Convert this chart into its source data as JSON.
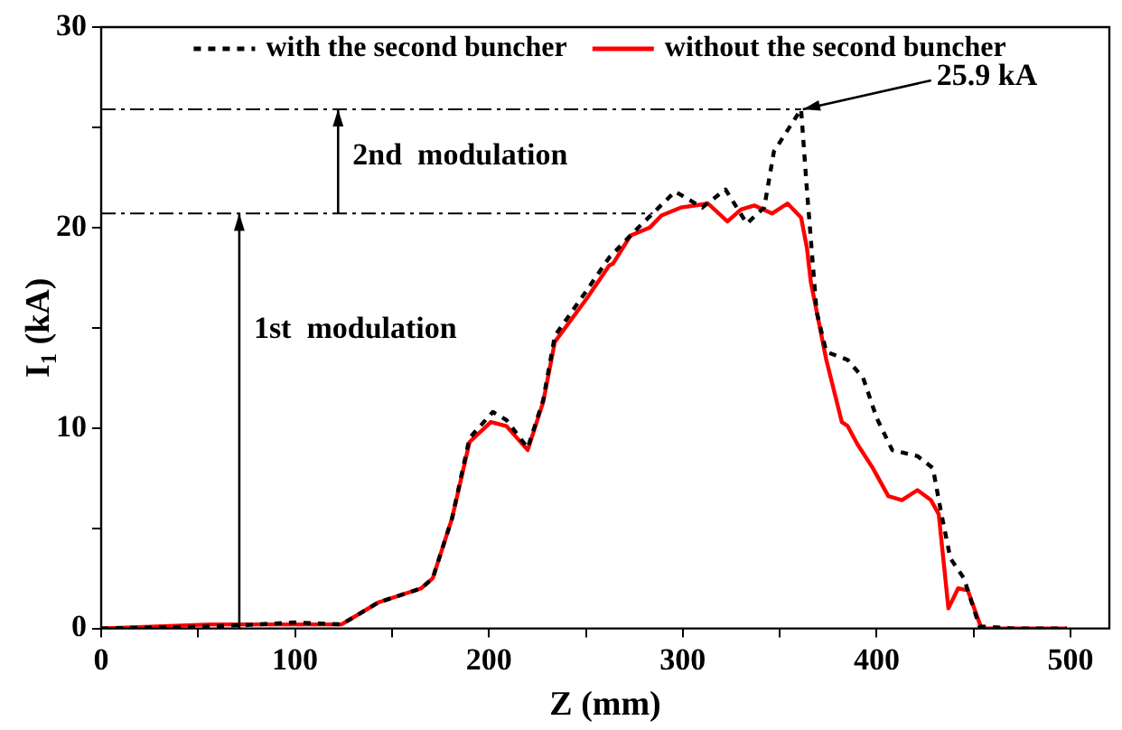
{
  "chart_data": {
    "type": "line",
    "xlabel": "Z (mm)",
    "ylabel": "I$_{1}$ (kA)",
    "xlim": [
      0,
      520
    ],
    "ylim": [
      0,
      30
    ],
    "xticks": [
      0,
      {
        "value": 50,
        "label": null
      },
      100,
      {
        "value": 150,
        "label": null
      },
      200,
      {
        "value": 250,
        "label": null
      },
      300,
      {
        "value": 350,
        "label": null
      },
      400,
      {
        "value": 450,
        "label": null
      },
      500
    ],
    "yticks": [
      0,
      {
        "value": 5,
        "label": null
      },
      10,
      {
        "value": 15,
        "label": null
      },
      20,
      {
        "value": 25,
        "label": null
      },
      30
    ],
    "grid": false,
    "legend": "top",
    "marker": "none",
    "series": [
      {
        "name": "with the second buncher",
        "color": "#000000",
        "line_style": "dashed",
        "x": [
          0,
          57,
          80,
          100,
          124,
          143,
          165,
          171,
          181,
          190,
          202,
          209,
          220,
          228,
          234,
          250,
          262,
          275,
          296,
          310,
          322,
          333,
          342,
          347,
          361,
          364,
          369,
          374,
          385,
          393,
          400,
          408,
          421,
          429,
          433,
          438,
          445,
          453,
          470,
          498
        ],
        "values": [
          0,
          0.1,
          0.2,
          0.3,
          0.2,
          1.3,
          2.0,
          2.5,
          5.5,
          9.5,
          10.8,
          10.4,
          9.0,
          11.4,
          14.6,
          16.8,
          18.5,
          19.8,
          21.8,
          21.0,
          21.9,
          20.2,
          21.0,
          23.8,
          25.9,
          21.9,
          15.8,
          13.8,
          13.4,
          12.5,
          10.5,
          8.9,
          8.6,
          8.0,
          5.9,
          3.5,
          2.5,
          0.1,
          0,
          0
        ]
      },
      {
        "name": "without the second buncher",
        "color": "#ff0000",
        "line_style": "solid",
        "x": [
          0,
          57,
          79,
          100,
          124,
          143,
          165,
          171,
          181,
          190,
          201,
          209,
          220,
          228,
          234,
          250,
          262,
          264,
          273,
          283,
          289,
          299,
          313,
          323,
          330,
          337,
          346,
          354,
          361,
          364,
          366,
          374,
          382,
          385,
          390,
          398,
          406,
          413,
          421,
          428,
          432,
          437,
          442,
          447,
          454,
          470,
          498
        ],
        "values": [
          0,
          0.2,
          0.2,
          0.2,
          0.2,
          1.3,
          2.0,
          2.5,
          5.5,
          9.3,
          10.3,
          10.1,
          8.9,
          11.3,
          14.3,
          16.4,
          18.1,
          18.2,
          19.6,
          20.0,
          20.6,
          21.0,
          21.2,
          20.3,
          20.9,
          21.1,
          20.7,
          21.2,
          20.5,
          19.0,
          17.3,
          13.4,
          10.3,
          10.1,
          9.2,
          8.0,
          6.6,
          6.4,
          6.9,
          6.4,
          5.7,
          1.0,
          2.0,
          1.9,
          0,
          0,
          0
        ]
      }
    ],
    "ref_lines": [
      {
        "axis": "y",
        "value": 20.7,
        "color": "#000000",
        "line_style": "dashed"
      },
      {
        "axis": "y",
        "value": 25.9,
        "color": "#000000",
        "line_style": "dashed"
      }
    ],
    "annotations": [
      "1st  modulation",
      "2nd  modulation",
      {
        "text": "25.9 kA",
        "x": 361,
        "y": 25.9
      }
    ]
  }
}
